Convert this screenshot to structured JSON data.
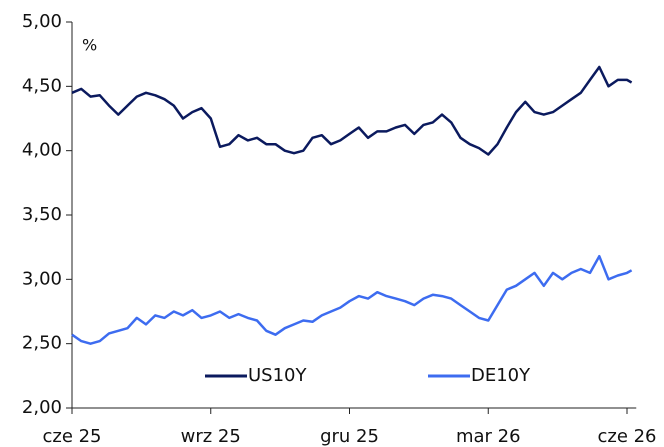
{
  "chart_data": {
    "type": "line",
    "ylabel": "%",
    "x": [
      0,
      0.2,
      0.4,
      0.6,
      0.8,
      1,
      1.2,
      1.4,
      1.6,
      1.8,
      2,
      2.2,
      2.4,
      2.6,
      2.8,
      3,
      3.2,
      3.4,
      3.6,
      3.8,
      4,
      4.2,
      4.4,
      4.6,
      4.8,
      5,
      5.2,
      5.4,
      5.6,
      5.8,
      6,
      6.2,
      6.4,
      6.6,
      6.8,
      7,
      7.2,
      7.4,
      7.6,
      7.8,
      8,
      8.2,
      8.4,
      8.6,
      8.8,
      9,
      9.2,
      9.4,
      9.6,
      9.8,
      10,
      10.2,
      10.4,
      10.6,
      10.8,
      11,
      11.2,
      11.4,
      11.6,
      11.8,
      12,
      12.1
    ],
    "series": [
      {
        "name": "US10Y",
        "color": "#0b1a5e",
        "values": [
          4.45,
          4.48,
          4.42,
          4.43,
          4.35,
          4.28,
          4.35,
          4.42,
          4.45,
          4.43,
          4.4,
          4.35,
          4.25,
          4.3,
          4.33,
          4.25,
          4.03,
          4.05,
          4.12,
          4.08,
          4.1,
          4.05,
          4.05,
          4.0,
          3.98,
          4.0,
          4.1,
          4.12,
          4.05,
          4.08,
          4.13,
          4.18,
          4.1,
          4.15,
          4.15,
          4.18,
          4.2,
          4.13,
          4.2,
          4.22,
          4.28,
          4.22,
          4.1,
          4.05,
          4.02,
          3.97,
          4.05,
          4.18,
          4.3,
          4.38,
          4.3,
          4.28,
          4.3,
          4.35,
          4.4,
          4.45,
          4.55,
          4.65,
          4.5,
          4.55,
          4.55,
          4.53
        ]
      },
      {
        "name": "DE10Y",
        "color": "#3d6cf0",
        "values": [
          2.57,
          2.52,
          2.5,
          2.52,
          2.58,
          2.6,
          2.62,
          2.7,
          2.65,
          2.72,
          2.7,
          2.75,
          2.72,
          2.76,
          2.7,
          2.72,
          2.75,
          2.7,
          2.73,
          2.7,
          2.68,
          2.6,
          2.57,
          2.62,
          2.65,
          2.68,
          2.67,
          2.72,
          2.75,
          2.78,
          2.83,
          2.87,
          2.85,
          2.9,
          2.87,
          2.85,
          2.83,
          2.8,
          2.85,
          2.88,
          2.87,
          2.85,
          2.8,
          2.75,
          2.7,
          2.68,
          2.8,
          2.92,
          2.95,
          3.0,
          3.05,
          2.95,
          3.05,
          3.0,
          3.05,
          3.08,
          3.05,
          3.18,
          3.0,
          3.03,
          3.05,
          3.07
        ]
      }
    ],
    "xlim": [
      0,
      12.2
    ],
    "xticks": [
      {
        "value": 0,
        "label": "cze 25"
      },
      {
        "value": 3,
        "label": "wrz 25"
      },
      {
        "value": 6,
        "label": "gru 25"
      },
      {
        "value": 9,
        "label": "mar 26"
      },
      {
        "value": 12,
        "label": "cze 26"
      }
    ],
    "ylim": [
      2,
      5
    ],
    "yticks": [
      {
        "value": 2,
        "label": "2,00"
      },
      {
        "value": 2.5,
        "label": "2,50"
      },
      {
        "value": 3,
        "label": "3,00"
      },
      {
        "value": 3.5,
        "label": "3,50"
      },
      {
        "value": 4,
        "label": "4,00"
      },
      {
        "value": 4.5,
        "label": "4,50"
      },
      {
        "value": 5,
        "label": "5,00"
      }
    ],
    "legend": "bottom"
  }
}
